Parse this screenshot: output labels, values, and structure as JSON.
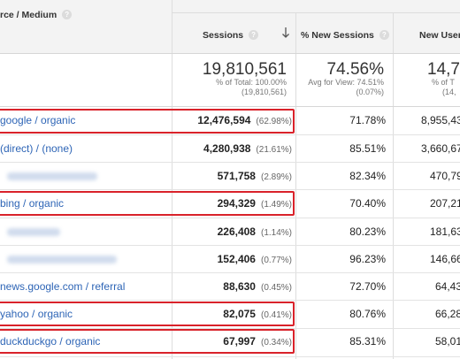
{
  "header": {
    "source_medium_label": "rce / Medium",
    "sessions_label": "Sessions",
    "new_sessions_label": "% New Sessions",
    "new_users_label": "New Users"
  },
  "totals": {
    "sessions": "19,810,561",
    "sessions_sub1": "% of Total: 100.00%",
    "sessions_sub2": "(19,810,561)",
    "new_sessions": "74.56%",
    "new_sessions_sub1": "Avg for View: 74.51%",
    "new_sessions_sub2": "(0.07%)",
    "new_users": "14,7",
    "new_users_sub1": "% of T",
    "new_users_sub2": "(14,"
  },
  "rows": [
    {
      "source": "google / organic",
      "sessions": "12,476,594",
      "sessions_pct": "(62.98%)",
      "new_sessions": "71.78%",
      "new_users": "8,955,43"
    },
    {
      "source": "(direct) / (none)",
      "sessions": "4,280,938",
      "sessions_pct": "(21.61%)",
      "new_sessions": "85.51%",
      "new_users": "3,660,67"
    },
    {
      "source": "",
      "sessions": "571,758",
      "sessions_pct": "(2.89%)",
      "new_sessions": "82.34%",
      "new_users": "470,79"
    },
    {
      "source": "bing / organic",
      "sessions": "294,329",
      "sessions_pct": "(1.49%)",
      "new_sessions": "70.40%",
      "new_users": "207,21"
    },
    {
      "source": "",
      "sessions": "226,408",
      "sessions_pct": "(1.14%)",
      "new_sessions": "80.23%",
      "new_users": "181,63"
    },
    {
      "source": "",
      "sessions": "152,406",
      "sessions_pct": "(0.77%)",
      "new_sessions": "96.23%",
      "new_users": "146,66"
    },
    {
      "source": "news.google.com / referral",
      "sessions": "88,630",
      "sessions_pct": "(0.45%)",
      "new_sessions": "72.70%",
      "new_users": "64,43"
    },
    {
      "source": "yahoo / organic",
      "sessions": "82,075",
      "sessions_pct": "(0.41%)",
      "new_sessions": "80.76%",
      "new_users": "66,28"
    },
    {
      "source": "duckduckgo / organic",
      "sessions": "67,997",
      "sessions_pct": "(0.34%)",
      "new_sessions": "85.31%",
      "new_users": "58,01"
    }
  ],
  "colors": {
    "highlight_box": "#d9222a",
    "link": "#2e65b6",
    "header_bg": "#f3f3f3"
  },
  "icons": {
    "help": "question-mark-circle",
    "sort": "arrow-down"
  }
}
